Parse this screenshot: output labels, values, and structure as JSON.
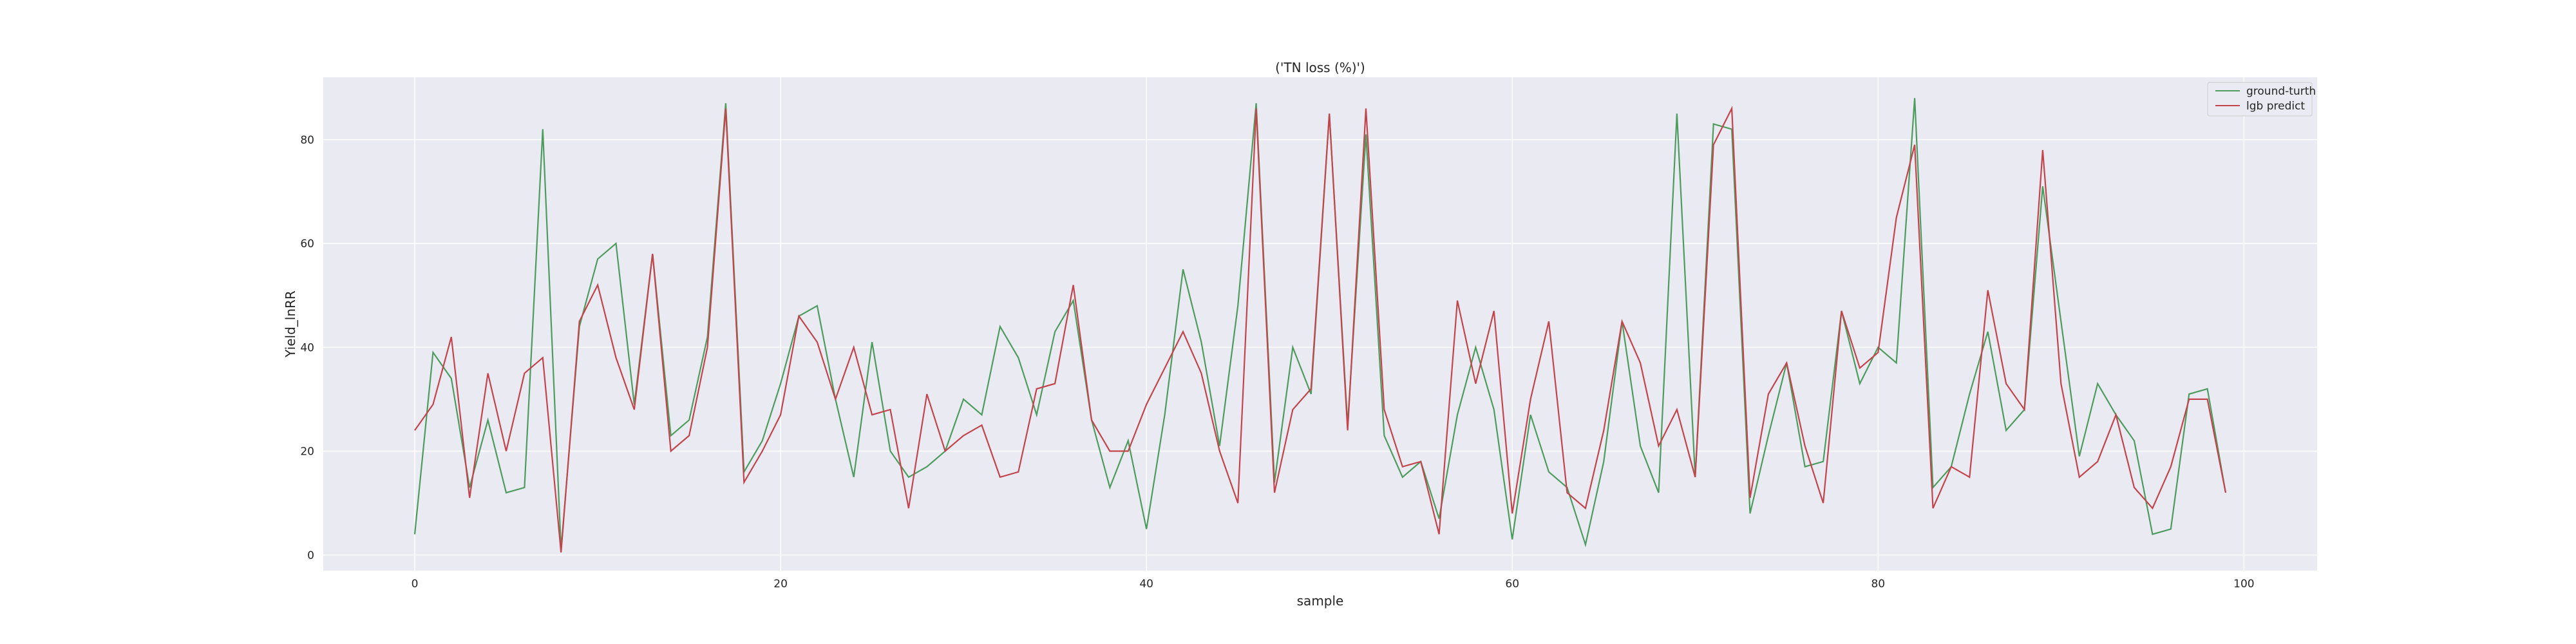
{
  "chart_data": {
    "type": "line",
    "title": "('TN loss (%)')",
    "xlabel": "sample",
    "ylabel": "Yield_lnRR",
    "xlim": [
      -5,
      104
    ],
    "ylim": [
      -3,
      92
    ],
    "xticks": [
      0,
      20,
      40,
      60,
      80,
      100
    ],
    "yticks": [
      0,
      20,
      40,
      60,
      80
    ],
    "grid": true,
    "legend_position": "top-right",
    "series": [
      {
        "name": "ground-turth",
        "color": "#4d9c5e",
        "x": [
          0,
          1,
          2,
          3,
          4,
          5,
          6,
          7,
          8,
          9,
          10,
          11,
          12,
          13,
          14,
          15,
          16,
          17,
          18,
          19,
          20,
          21,
          22,
          23,
          24,
          25,
          26,
          27,
          28,
          29,
          30,
          31,
          32,
          33,
          34,
          35,
          36,
          37,
          38,
          39,
          40,
          41,
          42,
          43,
          44,
          45,
          46,
          47,
          48,
          49,
          50,
          51,
          52,
          53,
          54,
          55,
          56,
          57,
          58,
          59,
          60,
          61,
          62,
          63,
          64,
          65,
          66,
          67,
          68,
          69,
          70,
          71,
          72,
          73,
          74,
          75,
          76,
          77,
          78,
          79,
          80,
          81,
          82,
          83,
          84,
          85,
          86,
          87,
          88,
          89,
          90,
          91,
          92,
          93,
          94,
          95,
          96,
          97,
          98,
          99
        ],
        "y": [
          4,
          39,
          34,
          13,
          26,
          12,
          13,
          82,
          1,
          44,
          57,
          60,
          29,
          58,
          23,
          26,
          42,
          87,
          16,
          22,
          33,
          46,
          48,
          30,
          15,
          41,
          20,
          15,
          17,
          20,
          30,
          27,
          44,
          38,
          27,
          43,
          49,
          26,
          13,
          22,
          5,
          27,
          55,
          41,
          21,
          48,
          87,
          14,
          40,
          31,
          85,
          25,
          81,
          23,
          15,
          18,
          7,
          27,
          40,
          28,
          3,
          27,
          16,
          13,
          2,
          18,
          45,
          21,
          12,
          85,
          15,
          83,
          82,
          8,
          23,
          37,
          17,
          18,
          47,
          33,
          40,
          37,
          88,
          13,
          17,
          31,
          43,
          24,
          28,
          71,
          45,
          19,
          33,
          27,
          22,
          4,
          5,
          31,
          32,
          12
        ]
      },
      {
        "name": "lgb predict",
        "color": "#c4444c",
        "x": [
          0,
          1,
          2,
          3,
          4,
          5,
          6,
          7,
          8,
          9,
          10,
          11,
          12,
          13,
          14,
          15,
          16,
          17,
          18,
          19,
          20,
          21,
          22,
          23,
          24,
          25,
          26,
          27,
          28,
          29,
          30,
          31,
          32,
          33,
          34,
          35,
          36,
          37,
          38,
          39,
          40,
          41,
          42,
          43,
          44,
          45,
          46,
          47,
          48,
          49,
          50,
          51,
          52,
          53,
          54,
          55,
          56,
          57,
          58,
          59,
          60,
          61,
          62,
          63,
          64,
          65,
          66,
          67,
          68,
          69,
          70,
          71,
          72,
          73,
          74,
          75,
          76,
          77,
          78,
          79,
          80,
          81,
          82,
          83,
          84,
          85,
          86,
          87,
          88,
          89,
          90,
          91,
          92,
          93,
          94,
          95,
          96,
          97,
          98,
          99
        ],
        "y": [
          24,
          29,
          42,
          11,
          35,
          20,
          35,
          38,
          0.5,
          45,
          52,
          38,
          28,
          58,
          20,
          23,
          40,
          86,
          14,
          20,
          27,
          46,
          41,
          30,
          40,
          27,
          28,
          9,
          31,
          20,
          23,
          25,
          15,
          16,
          32,
          33,
          52,
          26,
          20,
          20,
          29,
          36,
          43,
          35,
          20,
          10,
          86,
          12,
          28,
          32,
          85,
          24,
          86,
          28,
          17,
          18,
          4,
          49,
          33,
          47,
          8,
          30,
          45,
          12,
          9,
          24,
          45,
          37,
          21,
          28,
          15,
          79,
          86,
          11,
          31,
          37,
          21,
          10,
          47,
          36,
          39,
          65,
          79,
          9,
          17,
          15,
          51,
          33,
          28,
          78,
          33,
          15,
          18,
          27,
          13,
          9,
          17,
          30,
          30,
          12
        ]
      }
    ]
  }
}
